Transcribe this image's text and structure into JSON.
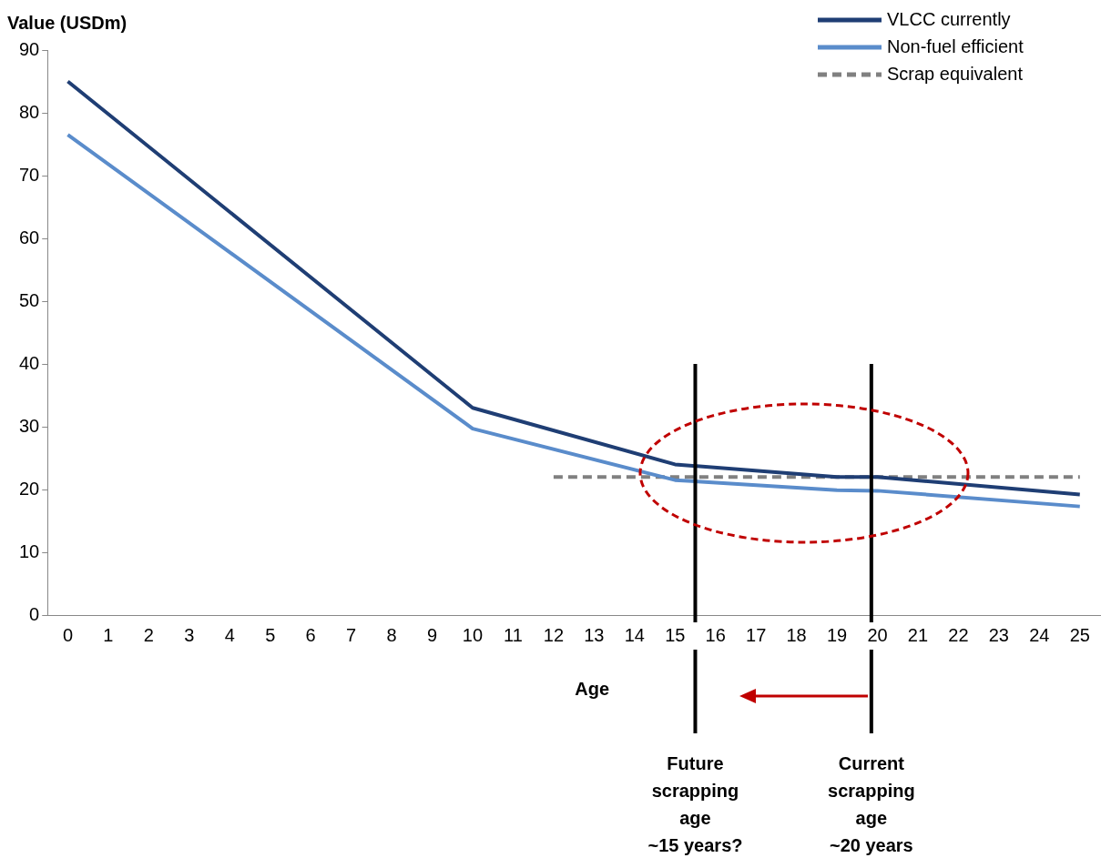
{
  "chart_data": {
    "type": "line",
    "ylabel": "Value (USDm)",
    "xlabel": "Age",
    "xlim": [
      -0.5,
      25.5
    ],
    "xticks": [
      0,
      1,
      2,
      3,
      4,
      5,
      6,
      7,
      8,
      9,
      10,
      11,
      12,
      13,
      14,
      15,
      16,
      17,
      18,
      19,
      20,
      21,
      22,
      23,
      24,
      25
    ],
    "ylim": [
      0,
      90
    ],
    "yticks": [
      0,
      10,
      20,
      30,
      40,
      50,
      60,
      70,
      80,
      90
    ],
    "grid": false,
    "legend": "top right",
    "marker": "none",
    "series": [
      {
        "name": "VLCC currently",
        "color": "#1f3e74",
        "x": [
          0,
          10,
          15,
          19,
          20,
          25
        ],
        "values": [
          85,
          33,
          24,
          22,
          22,
          19.2
        ]
      },
      {
        "name": "Non-fuel efficient",
        "color": "#5a8ccb",
        "x": [
          0,
          10,
          15,
          19,
          20,
          25
        ],
        "values": [
          76.5,
          29.7,
          21.5,
          19.9,
          19.8,
          17.3
        ]
      },
      {
        "name": "Scrap equivalent",
        "color": "#808080",
        "line_style": "dashed",
        "x": [
          12,
          25
        ],
        "values": [
          22,
          22
        ]
      }
    ],
    "ref_lines": [
      {
        "axis": "x",
        "value": 15.5,
        "color": "#000000"
      },
      {
        "axis": "x",
        "value": 19.85,
        "color": "#000000"
      }
    ],
    "annotations": [
      "Future\nscrapping\nage\n~15 years?",
      "Current\nscrapping\nage\n~20 years"
    ]
  }
}
